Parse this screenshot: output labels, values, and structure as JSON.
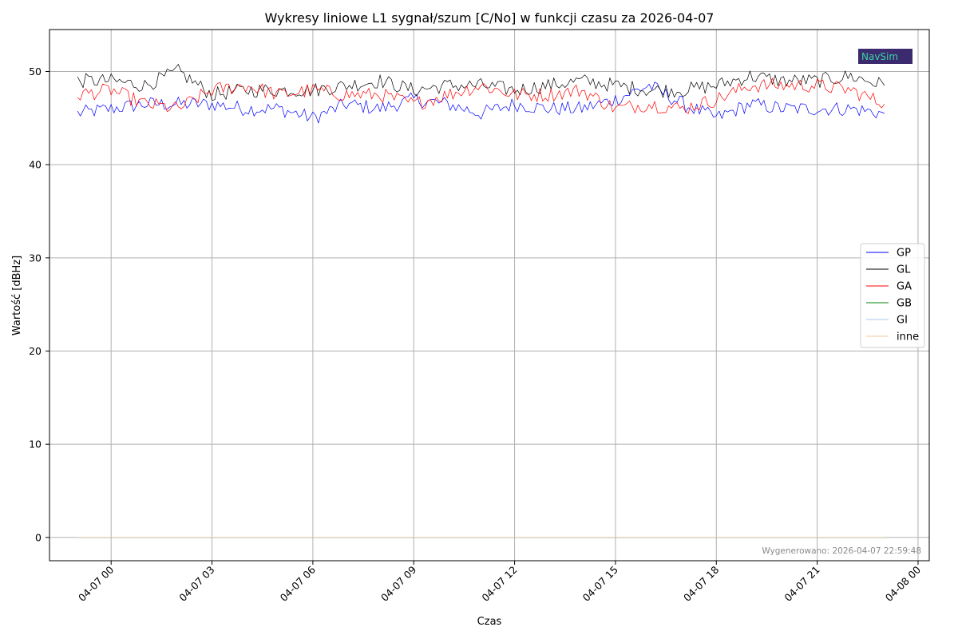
{
  "chart_data": {
    "type": "line",
    "title": "Wykresy liniowe L1 sygnał/szum [C/No] w funkcji czasu za 2026-04-07",
    "xlabel": "Czas",
    "ylabel": "Wartość [dBHz]",
    "x_range": [
      "2026-04-06 22:10",
      "2026-04-08 00:20"
    ],
    "ylim": [
      -2.5,
      54.5
    ],
    "y_ticks": [
      0,
      10,
      20,
      30,
      40,
      50
    ],
    "x_ticks": [
      {
        "t": "2026-04-07 00:00",
        "label": "04-07 00"
      },
      {
        "t": "2026-04-07 03:00",
        "label": "04-07 03"
      },
      {
        "t": "2026-04-07 06:00",
        "label": "04-07 06"
      },
      {
        "t": "2026-04-07 09:00",
        "label": "04-07 09"
      },
      {
        "t": "2026-04-07 12:00",
        "label": "04-07 12"
      },
      {
        "t": "2026-04-07 15:00",
        "label": "04-07 15"
      },
      {
        "t": "2026-04-07 18:00",
        "label": "04-07 18"
      },
      {
        "t": "2026-04-07 21:00",
        "label": "04-07 21"
      },
      {
        "t": "2026-04-08 00:00",
        "label": "04-08 00"
      }
    ],
    "grid": true,
    "legend_position": "center-right",
    "series": [
      {
        "name": "GP",
        "color": "#0000ff",
        "x": [
          "2026-04-06 23:00",
          "2026-04-07 00:00",
          "2026-04-07 01:00",
          "2026-04-07 02:00",
          "2026-04-07 03:00",
          "2026-04-07 04:00",
          "2026-04-07 05:00",
          "2026-04-07 06:00",
          "2026-04-07 07:00",
          "2026-04-07 08:00",
          "2026-04-07 09:00",
          "2026-04-07 10:00",
          "2026-04-07 11:00",
          "2026-04-07 12:00",
          "2026-04-07 13:00",
          "2026-04-07 14:00",
          "2026-04-07 15:00",
          "2026-04-07 16:00",
          "2026-04-07 17:00",
          "2026-04-07 18:00",
          "2026-04-07 19:00",
          "2026-04-07 20:00",
          "2026-04-07 21:00",
          "2026-04-07 22:00",
          "2026-04-07 23:00"
        ],
        "y": [
          45.5,
          46.0,
          46.5,
          46.5,
          46.5,
          46.0,
          46.0,
          45.0,
          46.5,
          46.0,
          47.0,
          46.5,
          45.5,
          46.5,
          46.0,
          46.0,
          47.0,
          48.5,
          46.5,
          45.0,
          46.5,
          46.0,
          46.0,
          46.0,
          45.5
        ]
      },
      {
        "name": "GL",
        "color": "#000000",
        "x": [
          "2026-04-06 23:00",
          "2026-04-07 00:00",
          "2026-04-07 01:00",
          "2026-04-07 02:00",
          "2026-04-07 03:00",
          "2026-04-07 04:00",
          "2026-04-07 05:00",
          "2026-04-07 06:00",
          "2026-04-07 07:00",
          "2026-04-07 08:00",
          "2026-04-07 09:00",
          "2026-04-07 10:00",
          "2026-04-07 11:00",
          "2026-04-07 12:00",
          "2026-04-07 13:00",
          "2026-04-07 14:00",
          "2026-04-07 15:00",
          "2026-04-07 16:00",
          "2026-04-07 17:00",
          "2026-04-07 18:00",
          "2026-04-07 19:00",
          "2026-04-07 20:00",
          "2026-04-07 21:00",
          "2026-04-07 22:00",
          "2026-04-07 23:00"
        ],
        "y": [
          49.0,
          49.0,
          48.5,
          50.0,
          47.5,
          48.0,
          48.0,
          48.0,
          48.5,
          49.0,
          48.0,
          48.5,
          48.5,
          48.0,
          48.5,
          49.0,
          48.5,
          48.0,
          48.0,
          48.5,
          49.5,
          49.0,
          49.0,
          49.5,
          48.5
        ]
      },
      {
        "name": "GA",
        "color": "#ff0000",
        "x": [
          "2026-04-06 23:00",
          "2026-04-07 00:00",
          "2026-04-07 01:00",
          "2026-04-07 02:00",
          "2026-04-07 03:00",
          "2026-04-07 04:00",
          "2026-04-07 05:00",
          "2026-04-07 06:00",
          "2026-04-07 07:00",
          "2026-04-07 08:00",
          "2026-04-07 09:00",
          "2026-04-07 10:00",
          "2026-04-07 11:00",
          "2026-04-07 12:00",
          "2026-04-07 13:00",
          "2026-04-07 14:00",
          "2026-04-07 15:00",
          "2026-04-07 16:00",
          "2026-04-07 17:00",
          "2026-04-07 18:00",
          "2026-04-07 19:00",
          "2026-04-07 20:00",
          "2026-04-07 21:00",
          "2026-04-07 22:00",
          "2026-04-07 23:00"
        ],
        "y": [
          47.5,
          48.0,
          46.5,
          46.0,
          48.0,
          48.5,
          47.5,
          48.0,
          47.5,
          47.5,
          46.5,
          47.5,
          48.5,
          47.5,
          47.5,
          48.0,
          46.0,
          46.5,
          46.0,
          47.0,
          48.5,
          48.5,
          48.5,
          48.0,
          46.5
        ]
      },
      {
        "name": "GB",
        "color": "#008000",
        "x": [
          "2026-04-06 23:00",
          "2026-04-07 23:00"
        ],
        "y": [
          0,
          0
        ]
      },
      {
        "name": "GI",
        "color": "#a6c8ee",
        "x": [
          "2026-04-06 23:00",
          "2026-04-07 23:00"
        ],
        "y": [
          0,
          0
        ]
      },
      {
        "name": "inne",
        "color": "#f6c79a",
        "x": [
          "2026-04-06 23:00",
          "2026-04-07 23:00"
        ],
        "y": [
          0,
          0
        ]
      }
    ],
    "annotation": "Wygenerowano: 2026-04-07 22:59:48",
    "logo_text": "NavSim"
  }
}
